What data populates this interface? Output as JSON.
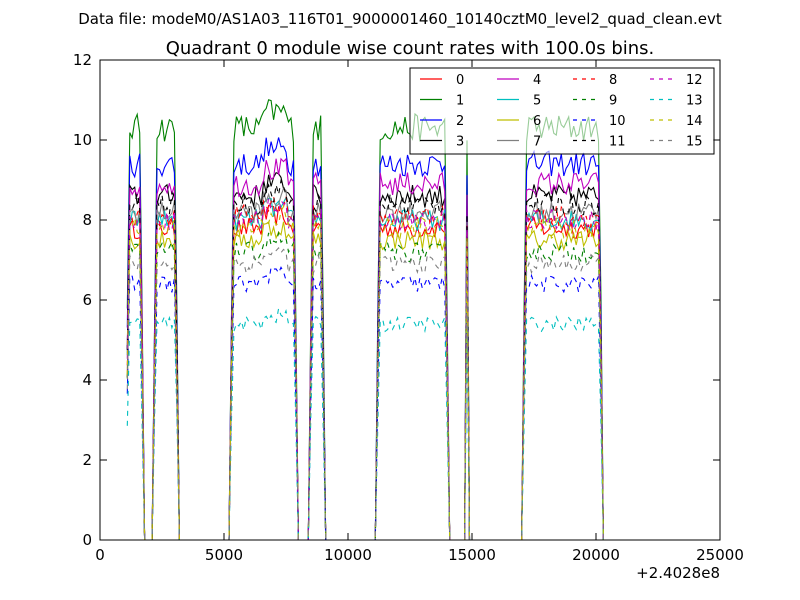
{
  "chart_data": {
    "type": "line",
    "suptitle": "Data file: modeM0/AS1A03_116T01_9000001460_10140cztM0_level2_quad_clean.evt",
    "title": "Quadrant 0 module wise count rates with 100.0s bins.",
    "xlabel": "",
    "ylabel": "",
    "xlim": [
      0,
      25000
    ],
    "ylim": [
      0,
      12
    ],
    "x_offset_label": "+2.4028e8",
    "x_ticks": [
      0,
      5000,
      10000,
      15000,
      20000,
      25000
    ],
    "x_tick_labels": [
      "0",
      "5000",
      "10000",
      "15000",
      "20000",
      "25000"
    ],
    "y_ticks": [
      0,
      2,
      4,
      6,
      8,
      10,
      12
    ],
    "y_tick_labels": [
      "0",
      "2",
      "4",
      "6",
      "8",
      "10",
      "12"
    ],
    "grid": false,
    "legend_placement": "top-right",
    "legend_columns": 4,
    "segments": [
      {
        "start": 1100,
        "end": 1700
      },
      {
        "start": 2150,
        "end": 3150
      },
      {
        "start": 5250,
        "end": 7950
      },
      {
        "start": 8450,
        "end": 9050
      },
      {
        "start": 11150,
        "end": 14050
      },
      {
        "start": 14800,
        "end": 14850
      },
      {
        "start": 17050,
        "end": 20250
      }
    ],
    "series": [
      {
        "name": "0",
        "color": "#ff0000",
        "dash": "solid",
        "level": 7.8
      },
      {
        "name": "1",
        "color": "#008000",
        "dash": "solid",
        "level": 10.3
      },
      {
        "name": "2",
        "color": "#0000ff",
        "dash": "solid",
        "level": 9.4
      },
      {
        "name": "3",
        "color": "#000000",
        "dash": "solid",
        "level": 8.6
      },
      {
        "name": "4",
        "color": "#bf00bf",
        "dash": "solid",
        "level": 8.9
      },
      {
        "name": "5",
        "color": "#00bfbf",
        "dash": "solid",
        "level": 8.0
      },
      {
        "name": "6",
        "color": "#bfbf00",
        "dash": "solid",
        "level": 7.5
      },
      {
        "name": "7",
        "color": "#808080",
        "dash": "solid",
        "level": 8.2
      },
      {
        "name": "8",
        "color": "#ff0000",
        "dash": "dashed",
        "level": 8.1
      },
      {
        "name": "9",
        "color": "#008000",
        "dash": "dashed",
        "level": 7.2
      },
      {
        "name": "10",
        "color": "#0000ff",
        "dash": "dashed",
        "level": 6.4
      },
      {
        "name": "11",
        "color": "#000000",
        "dash": "dashed",
        "level": 8.4
      },
      {
        "name": "12",
        "color": "#bf00bf",
        "dash": "dashed",
        "level": 8.0
      },
      {
        "name": "13",
        "color": "#00bfbf",
        "dash": "dashed",
        "level": 5.4
      },
      {
        "name": "14",
        "color": "#bfbf00",
        "dash": "dashed",
        "level": 7.8
      },
      {
        "name": "15",
        "color": "#808080",
        "dash": "dashed",
        "level": 6.9
      }
    ]
  }
}
